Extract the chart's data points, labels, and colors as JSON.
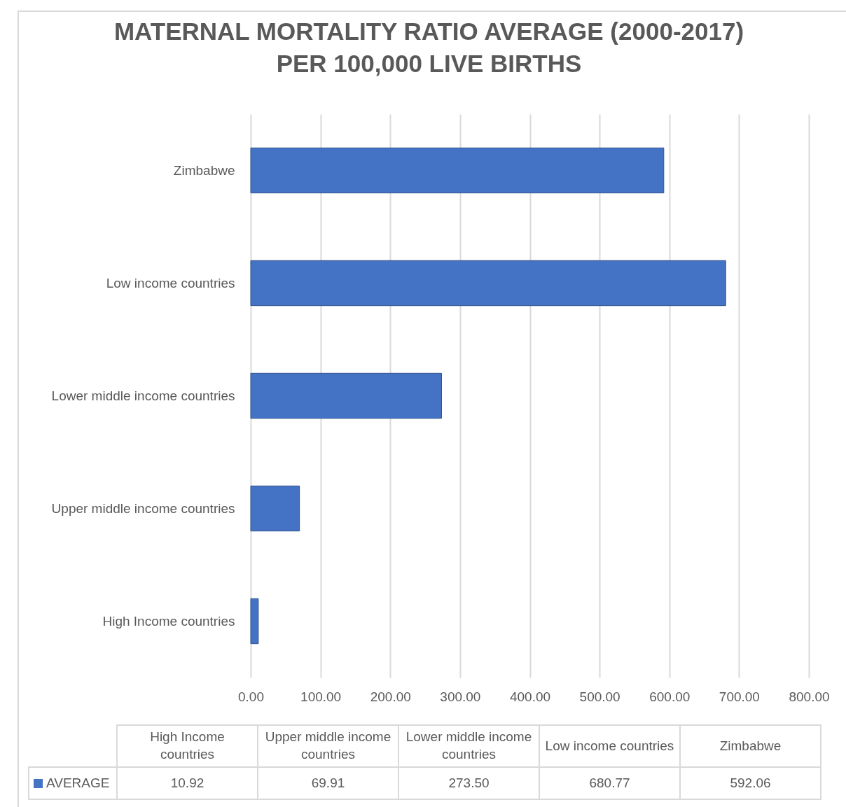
{
  "chart_data": {
    "type": "bar",
    "orientation": "horizontal",
    "title": "MATERNAL MORTALITY RATIO AVERAGE (2000-2017) PER 100,000 LIVE BIRTHS",
    "categories": [
      "Zimbabwe",
      "Low income countries",
      "Lower middle income countries",
      "Upper middle income countries",
      "High Income countries"
    ],
    "series": [
      {
        "name": "AVERAGE",
        "color": "#4472c4",
        "values": [
          592.06,
          680.77,
          273.5,
          69.91,
          10.92
        ]
      }
    ],
    "xlim": [
      0,
      800
    ],
    "xticks": [
      {
        "value": 0,
        "label": "0.00"
      },
      {
        "value": 100,
        "label": "100.00"
      },
      {
        "value": 200,
        "label": "200.00"
      },
      {
        "value": 300,
        "label": "300.00"
      },
      {
        "value": 400,
        "label": "400.00"
      },
      {
        "value": 500,
        "label": "500.00"
      },
      {
        "value": 600,
        "label": "600.00"
      },
      {
        "value": 700,
        "label": "700.00"
      },
      {
        "value": 800,
        "label": "800.00"
      }
    ],
    "value_labels": [
      "592.06",
      "680.77",
      "273.50",
      "69.91",
      "10.92"
    ],
    "grid": "x",
    "legend": "bottom"
  }
}
